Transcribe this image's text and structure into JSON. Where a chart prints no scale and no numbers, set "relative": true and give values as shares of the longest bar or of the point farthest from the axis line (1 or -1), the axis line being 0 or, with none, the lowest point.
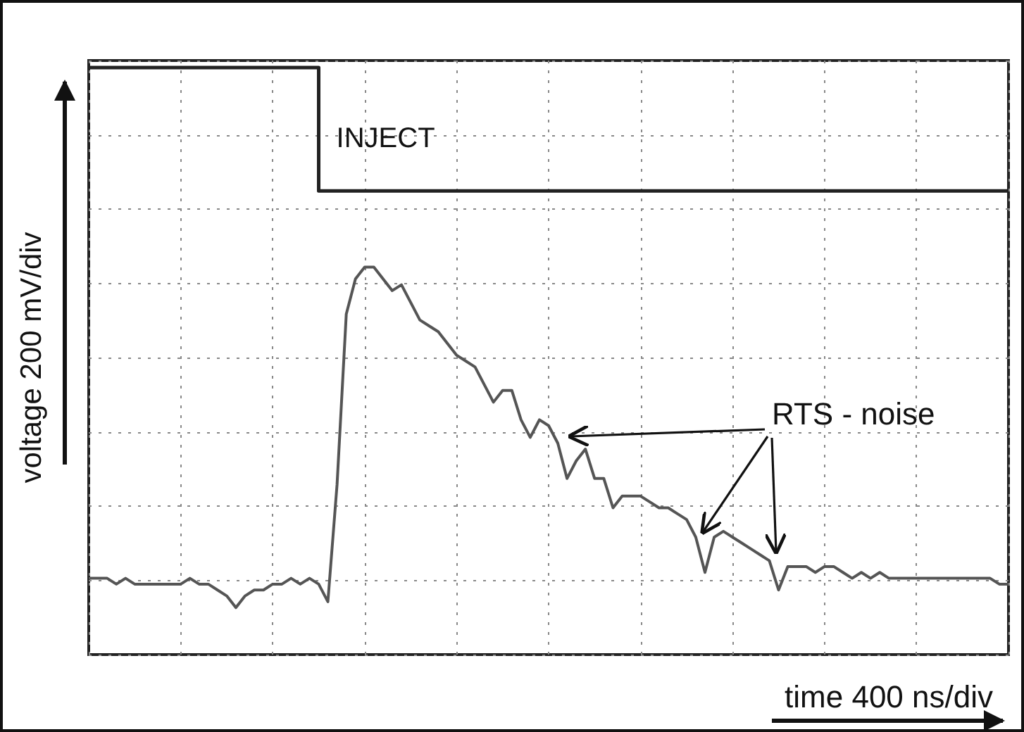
{
  "chart_data": {
    "type": "line",
    "relative": true,
    "grid": true,
    "xlabel": "time 400 ns/div",
    "ylabel": "voltage 200 mV/div",
    "annotations": [
      "RTS - noise"
    ],
    "categories": [
      null,
      null,
      null,
      null,
      null,
      null,
      null,
      null,
      null,
      null,
      null,
      null,
      null,
      null,
      null,
      null,
      null,
      null,
      null,
      null,
      null,
      null,
      null,
      null,
      null,
      null,
      null,
      null,
      null,
      null,
      null,
      null,
      null,
      null,
      null,
      null,
      null,
      null,
      null,
      null,
      null,
      null,
      null,
      null,
      null,
      null,
      null,
      null,
      null,
      null,
      null,
      null,
      null,
      null,
      null,
      null,
      null,
      null,
      null,
      null,
      null,
      null,
      null,
      null,
      null,
      null,
      null,
      null,
      null,
      null,
      null,
      null,
      null,
      null,
      null,
      null,
      null,
      null,
      null,
      null,
      null,
      null,
      null,
      null,
      null,
      null,
      null,
      null,
      null,
      null,
      null,
      null,
      null,
      null,
      null,
      null,
      null,
      null,
      null,
      null,
      null
    ],
    "series": [
      {
        "name": "INJECT",
        "type": "step",
        "color": "#222222",
        "values": [
          1,
          1,
          1,
          1,
          1,
          1,
          1,
          1,
          1,
          1,
          1,
          1,
          1,
          1,
          1,
          1,
          1,
          1,
          1,
          1,
          1,
          1,
          1,
          1,
          1,
          1,
          0.79,
          0.79,
          0.79,
          0.79,
          0.79,
          0.79,
          0.79,
          0.79,
          0.79,
          0.79,
          0.79,
          0.79,
          0.79,
          0.79,
          0.79,
          0.79,
          0.79,
          0.79,
          0.79,
          0.79,
          0.79,
          0.79,
          0.79,
          0.79,
          0.79,
          0.79,
          0.79,
          0.79,
          0.79,
          0.79,
          0.79,
          0.79,
          0.79,
          0.79,
          0.79,
          0.79,
          0.79,
          0.79,
          0.79,
          0.79,
          0.79,
          0.79,
          0.79,
          0.79,
          0.79,
          0.79,
          0.79,
          0.79,
          0.79,
          0.79,
          0.79,
          0.79,
          0.79,
          0.79,
          0.79,
          0.79,
          0.79,
          0.79,
          0.79,
          0.79,
          0.79,
          0.79,
          0.79,
          0.79,
          0.79,
          0.79,
          0.79,
          0.79,
          0.79,
          0.79,
          0.79,
          0.79,
          0.79,
          0.79,
          0.79
        ]
      },
      {
        "type": "line",
        "color": "#555555",
        "values": [
          0.13,
          0.13,
          0.13,
          0.12,
          0.13,
          0.12,
          0.12,
          0.12,
          0.12,
          0.12,
          0.12,
          0.13,
          0.12,
          0.12,
          0.11,
          0.1,
          0.08,
          0.1,
          0.11,
          0.11,
          0.12,
          0.12,
          0.13,
          0.12,
          0.13,
          0.12,
          0.09,
          0.29,
          0.58,
          0.64,
          0.66,
          0.66,
          0.64,
          0.62,
          0.63,
          0.6,
          0.57,
          0.56,
          0.55,
          0.53,
          0.51,
          0.5,
          0.49,
          0.46,
          0.43,
          0.45,
          0.45,
          0.4,
          0.37,
          0.4,
          0.39,
          0.36,
          0.3,
          0.33,
          0.35,
          0.3,
          0.3,
          0.25,
          0.27,
          0.27,
          0.27,
          0.26,
          0.25,
          0.25,
          0.24,
          0.23,
          0.2,
          0.14,
          0.2,
          0.21,
          0.2,
          0.19,
          0.18,
          0.17,
          0.16,
          0.11,
          0.15,
          0.15,
          0.15,
          0.14,
          0.15,
          0.15,
          0.14,
          0.13,
          0.14,
          0.13,
          0.14,
          0.13,
          0.13,
          0.13,
          0.13,
          0.13,
          0.13,
          0.13,
          0.13,
          0.13,
          0.13,
          0.13,
          0.13,
          0.12,
          0.12
        ]
      }
    ]
  }
}
